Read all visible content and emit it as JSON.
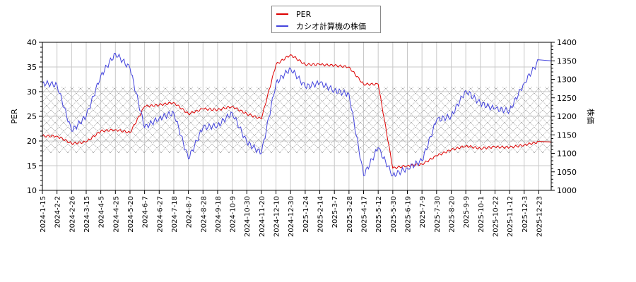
{
  "legend": {
    "items": [
      {
        "label": "PER",
        "color": "#dd0000"
      },
      {
        "label": "カシオ計算機の株価",
        "color": "#4444dd"
      }
    ]
  },
  "axes": {
    "left_title": "PER",
    "right_title": "株価",
    "left_ticks": [
      "40",
      "35",
      "30",
      "25",
      "20",
      "15",
      "10"
    ],
    "right_ticks": [
      "1400",
      "1350",
      "1300",
      "1250",
      "1200",
      "1150",
      "1100",
      "1050",
      "1000"
    ],
    "x_ticks": [
      "2024-1-15",
      "2024-2-2",
      "2024-2-26",
      "2024-3-15",
      "2024-4-5",
      "2024-4-25",
      "2024-5-20",
      "2024-6-7",
      "2024-6-27",
      "2024-7-18",
      "2024-8-7",
      "2024-8-28",
      "2024-9-18",
      "2024-10-9",
      "2024-10-30",
      "2024-11-20",
      "2024-12-10",
      "2024-12-30",
      "2025-1-24",
      "2025-2-14",
      "2025-3-7",
      "2025-3-28",
      "2025-4-17",
      "2025-5-12",
      "2025-5-30",
      "2025-6-19",
      "2025-7-9",
      "2025-7-30",
      "2025-8-20",
      "2025-9-9",
      "2025-10-1",
      "2025-10-22",
      "2025-11-12",
      "2025-12-3",
      "2025-12-23"
    ]
  },
  "chart_data": {
    "type": "line",
    "title": "",
    "xlabel": "",
    "ylabel": "PER",
    "ylabel_right": "株価",
    "ylim": [
      10,
      40
    ],
    "ylim_right": [
      1000,
      1400
    ],
    "grid": true,
    "legend_position": "top-center",
    "shaded_band": {
      "axis": "left",
      "from": 17.5,
      "to": 31,
      "style": "cross-hatch gray"
    },
    "x": [
      "2024-1-15",
      "2024-2-2",
      "2024-2-26",
      "2024-3-15",
      "2024-4-5",
      "2024-4-25",
      "2024-5-20",
      "2024-6-7",
      "2024-6-27",
      "2024-7-18",
      "2024-8-7",
      "2024-8-28",
      "2024-9-18",
      "2024-10-9",
      "2024-10-30",
      "2024-11-20",
      "2024-12-10",
      "2024-12-30",
      "2025-1-24",
      "2025-2-14",
      "2025-3-7",
      "2025-3-28",
      "2025-4-17",
      "2025-5-12",
      "2025-5-30",
      "2025-6-19",
      "2025-7-9",
      "2025-7-30",
      "2025-8-20",
      "2025-9-9",
      "2025-10-1",
      "2025-10-22",
      "2025-11-12",
      "2025-12-3",
      "2025-12-23"
    ],
    "series": [
      {
        "name": "PER",
        "axis": "left",
        "color": "#dd0000",
        "values": [
          21.0,
          21.0,
          19.5,
          19.8,
          22.0,
          22.3,
          21.7,
          27.0,
          27.3,
          27.8,
          25.5,
          26.5,
          26.3,
          27.0,
          25.5,
          24.5,
          35.5,
          37.5,
          35.5,
          35.5,
          35.3,
          35.0,
          31.5,
          31.5,
          14.5,
          15.0,
          15.3,
          17.0,
          18.2,
          19.0,
          18.5,
          18.8,
          18.7,
          19.2,
          19.8
        ]
      },
      {
        "name": "カシオ計算機の株価",
        "axis": "right",
        "color": "#4444dd",
        "values": [
          1290,
          1285,
          1160,
          1200,
          1310,
          1370,
          1330,
          1170,
          1195,
          1210,
          1085,
          1170,
          1175,
          1210,
          1130,
          1100,
          1290,
          1330,
          1280,
          1290,
          1270,
          1260,
          1040,
          1115,
          1040,
          1060,
          1080,
          1190,
          1200,
          1270,
          1235,
          1220,
          1215,
          1290,
          1350
        ]
      }
    ]
  }
}
